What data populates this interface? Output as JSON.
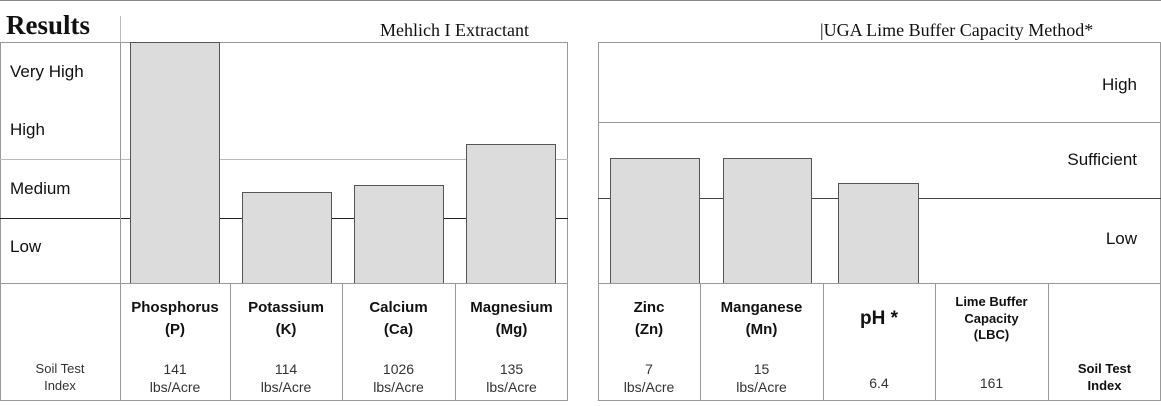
{
  "header": {
    "title": "Results",
    "left_method": "Mehlich I Extractant",
    "right_method": "|UGA Lime Buffer Capacity Method*"
  },
  "left_levels": [
    "Very High",
    "High",
    "Medium",
    "Low"
  ],
  "right_levels": [
    "High",
    "Sufficient",
    "Low"
  ],
  "left_table": {
    "row_label": "Soil Test Index",
    "columns": [
      {
        "name": "Phosphorus",
        "symbol": "(P)",
        "value": 141,
        "unit": "lbs/Acre"
      },
      {
        "name": "Potassium",
        "symbol": "(K)",
        "value": 114,
        "unit": "lbs/Acre"
      },
      {
        "name": "Calcium",
        "symbol": "(Ca)",
        "value": 1026,
        "unit": "lbs/Acre"
      },
      {
        "name": "Magnesium",
        "symbol": "(Mg)",
        "value": 135,
        "unit": "lbs/Acre"
      }
    ]
  },
  "right_table": {
    "row_label": "Soil Test Index",
    "columns": [
      {
        "name": "Zinc",
        "symbol": "(Zn)",
        "value": 7,
        "unit": "lbs/Acre"
      },
      {
        "name": "Manganese",
        "symbol": "(Mn)",
        "value": 15,
        "unit": "lbs/Acre"
      },
      {
        "name": "pH *",
        "value": 6.4
      },
      {
        "name": "Lime Buffer Capacity (LBC)",
        "value": 161
      }
    ]
  }
}
